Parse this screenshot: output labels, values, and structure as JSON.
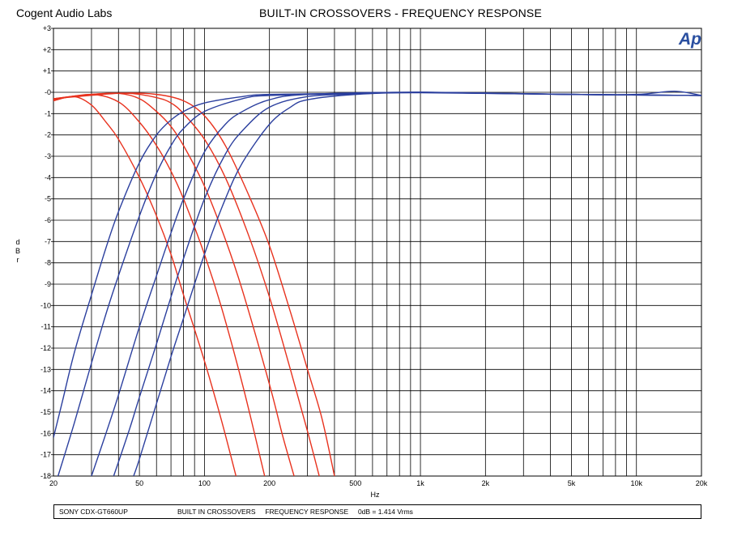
{
  "header": {
    "brand": "Cogent Audio Labs",
    "title": "BUILT-IN CROSSOVERS   -  FREQUENCY RESPONSE"
  },
  "logo": "Ap",
  "footer": {
    "model": "SONY CDX-GT660UP",
    "description": "BUILT IN CROSSOVERS     FREQUENCY RESPONSE     0dB = 1.414 Vrms"
  },
  "colors": {
    "lowpass": "#e8321e",
    "highpass": "#2b3f9e",
    "grid": "#000000",
    "logo": "#2a4fa0"
  },
  "chart_data": {
    "type": "line",
    "xscale": "log",
    "xlim": [
      20,
      20000
    ],
    "ylim": [
      -18,
      3
    ],
    "xlabel": "Hz",
    "ylabel": "dBr",
    "grid": true,
    "x_ticks": [
      {
        "value": 20,
        "label": "20"
      },
      {
        "value": 50,
        "label": "50"
      },
      {
        "value": 100,
        "label": "100"
      },
      {
        "value": 200,
        "label": "200"
      },
      {
        "value": 500,
        "label": "500"
      },
      {
        "value": 1000,
        "label": "1k"
      },
      {
        "value": 2000,
        "label": "2k"
      },
      {
        "value": 5000,
        "label": "5k"
      },
      {
        "value": 10000,
        "label": "10k"
      },
      {
        "value": 20000,
        "label": "20k"
      }
    ],
    "y_ticks": [
      {
        "value": 3,
        "label": "+3"
      },
      {
        "value": 2,
        "label": "+2"
      },
      {
        "value": 1,
        "label": "+1"
      },
      {
        "value": 0,
        "label": "-0"
      },
      {
        "value": -1,
        "label": "-1"
      },
      {
        "value": -2,
        "label": "-2"
      },
      {
        "value": -3,
        "label": "-3"
      },
      {
        "value": -4,
        "label": "-4"
      },
      {
        "value": -5,
        "label": "-5"
      },
      {
        "value": -6,
        "label": "-6"
      },
      {
        "value": -7,
        "label": "-7"
      },
      {
        "value": -8,
        "label": "-8"
      },
      {
        "value": -9,
        "label": "-9"
      },
      {
        "value": -10,
        "label": "-10"
      },
      {
        "value": -11,
        "label": "-11"
      },
      {
        "value": -12,
        "label": "-12"
      },
      {
        "value": -13,
        "label": "-13"
      },
      {
        "value": -14,
        "label": "-14"
      },
      {
        "value": -15,
        "label": "-15"
      },
      {
        "value": -16,
        "label": "-16"
      },
      {
        "value": -17,
        "label": "-17"
      },
      {
        "value": -18,
        "label": "-18"
      }
    ],
    "series": [
      {
        "kind": "lowpass",
        "points": [
          [
            20,
            -0.4
          ],
          [
            25,
            -0.2
          ],
          [
            30,
            -0.6
          ],
          [
            35,
            -1.4
          ],
          [
            40,
            -2.2
          ],
          [
            50,
            -4.0
          ],
          [
            60,
            -5.8
          ],
          [
            70,
            -7.6
          ],
          [
            80,
            -9.5
          ],
          [
            100,
            -12.6
          ],
          [
            120,
            -15.4
          ],
          [
            140,
            -18
          ]
        ]
      },
      {
        "kind": "lowpass",
        "points": [
          [
            20,
            -0.35
          ],
          [
            30,
            -0.1
          ],
          [
            40,
            -0.45
          ],
          [
            50,
            -1.4
          ],
          [
            60,
            -2.5
          ],
          [
            70,
            -3.7
          ],
          [
            80,
            -5.0
          ],
          [
            100,
            -7.6
          ],
          [
            120,
            -10.1
          ],
          [
            150,
            -13.7
          ],
          [
            180,
            -17.0
          ],
          [
            190,
            -18
          ]
        ]
      },
      {
        "kind": "lowpass",
        "points": [
          [
            20,
            -0.3
          ],
          [
            30,
            -0.1
          ],
          [
            40,
            -0.05
          ],
          [
            50,
            -0.3
          ],
          [
            60,
            -0.9
          ],
          [
            70,
            -1.6
          ],
          [
            80,
            -2.5
          ],
          [
            100,
            -4.4
          ],
          [
            125,
            -6.9
          ],
          [
            150,
            -9.3
          ],
          [
            200,
            -13.7
          ],
          [
            230,
            -16.1
          ],
          [
            260,
            -18
          ]
        ]
      },
      {
        "kind": "lowpass",
        "points": [
          [
            20,
            -0.3
          ],
          [
            30,
            -0.1
          ],
          [
            45,
            -0.05
          ],
          [
            60,
            -0.25
          ],
          [
            70,
            -0.5
          ],
          [
            80,
            -1.0
          ],
          [
            100,
            -2.2
          ],
          [
            125,
            -4.0
          ],
          [
            160,
            -6.7
          ],
          [
            200,
            -9.6
          ],
          [
            250,
            -13.0
          ],
          [
            300,
            -15.9
          ],
          [
            340,
            -18
          ]
        ]
      },
      {
        "kind": "lowpass",
        "points": [
          [
            20,
            -0.3
          ],
          [
            40,
            -0.05
          ],
          [
            60,
            -0.1
          ],
          [
            80,
            -0.4
          ],
          [
            100,
            -1.1
          ],
          [
            125,
            -2.5
          ],
          [
            160,
            -4.8
          ],
          [
            200,
            -7.2
          ],
          [
            250,
            -10.3
          ],
          [
            300,
            -13.0
          ],
          [
            350,
            -15.3
          ],
          [
            400,
            -18
          ]
        ]
      },
      {
        "kind": "highpass",
        "points": [
          [
            20,
            -16.2
          ],
          [
            22,
            -14.5
          ],
          [
            25,
            -12.2
          ],
          [
            30,
            -9.5
          ],
          [
            35,
            -7.3
          ],
          [
            40,
            -5.6
          ],
          [
            50,
            -3.3
          ],
          [
            60,
            -2.0
          ],
          [
            70,
            -1.3
          ],
          [
            80,
            -0.9
          ],
          [
            100,
            -0.5
          ],
          [
            150,
            -0.2
          ],
          [
            200,
            -0.1
          ],
          [
            500,
            -0.05
          ],
          [
            1000,
            0.0
          ],
          [
            2000,
            -0.05
          ],
          [
            5000,
            -0.1
          ],
          [
            10000,
            -0.1
          ],
          [
            15000,
            0.05
          ],
          [
            20000,
            -0.15
          ]
        ]
      },
      {
        "kind": "highpass",
        "points": [
          [
            21,
            -18
          ],
          [
            25,
            -15.5
          ],
          [
            30,
            -12.7
          ],
          [
            35,
            -10.4
          ],
          [
            40,
            -8.6
          ],
          [
            50,
            -5.8
          ],
          [
            60,
            -3.8
          ],
          [
            70,
            -2.5
          ],
          [
            80,
            -1.7
          ],
          [
            100,
            -0.9
          ],
          [
            150,
            -0.3
          ],
          [
            200,
            -0.15
          ],
          [
            500,
            -0.05
          ],
          [
            1000,
            0.0
          ],
          [
            5000,
            -0.1
          ],
          [
            20000,
            -0.15
          ]
        ]
      },
      {
        "kind": "highpass",
        "points": [
          [
            30,
            -18
          ],
          [
            35,
            -16.0
          ],
          [
            40,
            -14.2
          ],
          [
            50,
            -11.0
          ],
          [
            60,
            -8.6
          ],
          [
            70,
            -6.6
          ],
          [
            80,
            -5.0
          ],
          [
            100,
            -2.8
          ],
          [
            125,
            -1.5
          ],
          [
            150,
            -0.9
          ],
          [
            200,
            -0.35
          ],
          [
            300,
            -0.1
          ],
          [
            1000,
            0.0
          ],
          [
            5000,
            -0.1
          ],
          [
            20000,
            -0.15
          ]
        ]
      },
      {
        "kind": "highpass",
        "points": [
          [
            38,
            -18
          ],
          [
            45,
            -15.8
          ],
          [
            50,
            -14.3
          ],
          [
            60,
            -11.8
          ],
          [
            70,
            -9.6
          ],
          [
            80,
            -7.8
          ],
          [
            100,
            -5.0
          ],
          [
            125,
            -2.9
          ],
          [
            150,
            -1.8
          ],
          [
            200,
            -0.7
          ],
          [
            300,
            -0.2
          ],
          [
            500,
            -0.08
          ],
          [
            1000,
            0.0
          ],
          [
            5000,
            -0.1
          ],
          [
            20000,
            -0.15
          ]
        ]
      },
      {
        "kind": "highpass",
        "points": [
          [
            47,
            -18
          ],
          [
            50,
            -17.2
          ],
          [
            60,
            -14.6
          ],
          [
            70,
            -12.4
          ],
          [
            80,
            -10.6
          ],
          [
            100,
            -7.6
          ],
          [
            125,
            -5.0
          ],
          [
            150,
            -3.3
          ],
          [
            200,
            -1.5
          ],
          [
            250,
            -0.7
          ],
          [
            300,
            -0.35
          ],
          [
            500,
            -0.1
          ],
          [
            1000,
            -0.02
          ],
          [
            5000,
            -0.1
          ],
          [
            20000,
            -0.15
          ]
        ]
      }
    ]
  }
}
